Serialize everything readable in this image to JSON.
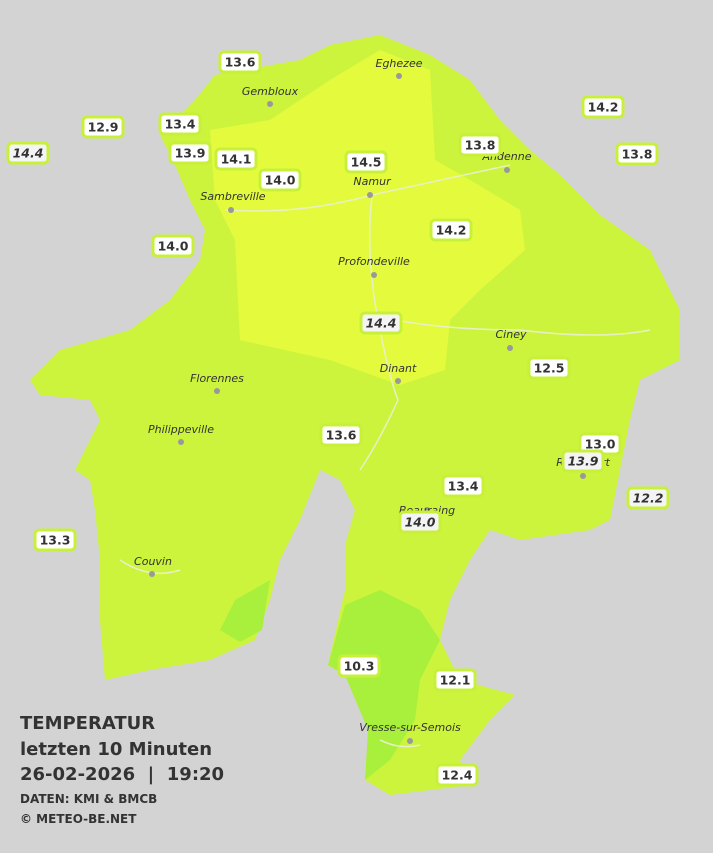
{
  "map": {
    "cities": [
      "Eghezee",
      "Gembloux",
      "Andenne",
      "Namur",
      "Sambreville",
      "Profondeville",
      "Ciney",
      "Dinant",
      "Florennes",
      "Philippeville",
      "Rochefort",
      "Beauraing",
      "Couvin",
      "Vresse-sur-Semois"
    ],
    "temperatures": [
      "13.6",
      "12.9",
      "13.4",
      "14.4",
      "13.9",
      "14.1",
      "14.0",
      "14.5",
      "13.8",
      "14.2",
      "13.8",
      "14.0",
      "14.2",
      "14.4",
      "12.5",
      "13.6",
      "13.0",
      "13.9",
      "13.4",
      "12.2",
      "14.0",
      "13.3",
      "10.3",
      "12.1",
      "12.4"
    ]
  },
  "footer": {
    "title": "TEMPERATUR",
    "period": "letzten 10 Minuten",
    "timestamp": "26-02-2026  |  19:20",
    "source": "DATEN: KMI & BMCB",
    "copyright": "© METEO-BE.NET"
  }
}
